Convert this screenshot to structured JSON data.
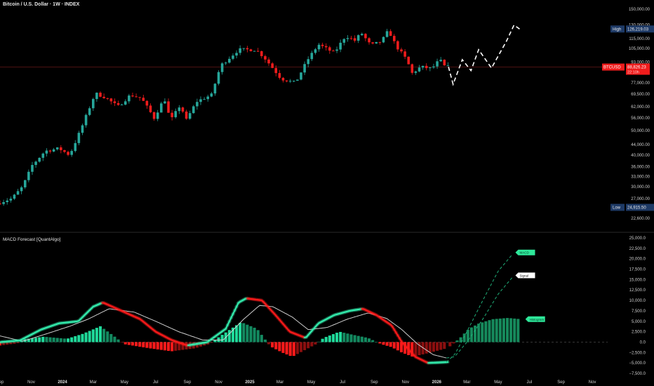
{
  "header": {
    "title": "Bitcoin / U.S. Dollar · 1W · INDEX"
  },
  "indicator": {
    "title": "MACD Forecast [QuantAlgo]"
  },
  "colors": {
    "background": "#000000",
    "up": "#26a69a",
    "down": "#ef1c1c",
    "axis_text": "#cfcfcf",
    "price_line": "#7a1d1d",
    "macd_up": "#35f0b0",
    "macd_down": "#ff1a1a",
    "signal": "#cfcfcf",
    "hist_up": "#1fd99a",
    "hist_up_dark": "#138a60",
    "hist_down": "#ff1a1a",
    "hist_down_dark": "#8b0f0f",
    "forecast_hist": "#168a5c",
    "high_badge": "#1e3a66",
    "low_badge": "#1e3a66"
  },
  "labels": {
    "high_label": "High",
    "high_value": "126,219.03",
    "low_label": "Low",
    "low_value": "24,915.50",
    "symbol": "BTCUSD",
    "last_price": "88,826.23",
    "countdown": "22:10h",
    "macd_tag": "MACD",
    "signal_tag": "Signal",
    "histogram_tag": "Histogram"
  },
  "chart_data": [
    {
      "type": "candlestick",
      "title": "Bitcoin / U.S. Dollar · 1W · INDEX",
      "scale": "log",
      "y_ticks": [
        "150,000.00",
        "130,000.00",
        "115,000.00",
        "105,000.00",
        "93,000.00",
        "77,000.00",
        "69,500.00",
        "62,000.00",
        "56,000.00",
        "50,000.00",
        "44,000.00",
        "40,000.00",
        "36,000.00",
        "33,000.00",
        "30,000.00",
        "27,000.00",
        "22,600.00"
      ],
      "y_tick_values": [
        150000,
        130000,
        115000,
        105000,
        93000,
        77000,
        69500,
        62000,
        56000,
        50000,
        44000,
        40000,
        36000,
        33000,
        30000,
        27000,
        22600
      ],
      "x_ticks": [
        "Sep",
        "Nov",
        "2024",
        "Mar",
        "May",
        "Jul",
        "Sep",
        "Nov",
        "2025",
        "Mar",
        "May",
        "Jul",
        "Sep",
        "Nov",
        "2026",
        "Mar",
        "May",
        "Jul",
        "Sep",
        "Nov"
      ],
      "x_start": "2023-09-01",
      "x_end": "2026-12-01",
      "ylim": [
        20000,
        155000
      ],
      "last_price": 88826.23,
      "high": 126219.03,
      "low": 24915.5,
      "anchors": [
        [
          "2023-09-01",
          25800
        ],
        [
          "2023-10-01",
          27000
        ],
        [
          "2023-10-22",
          30000
        ],
        [
          "2023-11-10",
          36500
        ],
        [
          "2023-12-05",
          41500
        ],
        [
          "2024-01-01",
          42500
        ],
        [
          "2024-01-22",
          40000
        ],
        [
          "2024-02-12",
          50000
        ],
        [
          "2024-03-12",
          70000
        ],
        [
          "2024-04-01",
          67500
        ],
        [
          "2024-04-25",
          62000
        ],
        [
          "2024-05-20",
          69000
        ],
        [
          "2024-06-10",
          67000
        ],
        [
          "2024-07-05",
          56000
        ],
        [
          "2024-07-25",
          67000
        ],
        [
          "2024-08-06",
          54500
        ],
        [
          "2024-08-25",
          63000
        ],
        [
          "2024-09-06",
          55000
        ],
        [
          "2024-09-26",
          65000
        ],
        [
          "2024-10-25",
          69000
        ],
        [
          "2024-11-12",
          90000
        ],
        [
          "2024-12-17",
          104000
        ],
        [
          "2025-01-20",
          104000
        ],
        [
          "2025-02-05",
          97000
        ],
        [
          "2025-03-10",
          80000
        ],
        [
          "2025-04-07",
          77000
        ],
        [
          "2025-05-01",
          95000
        ],
        [
          "2025-05-22",
          109000
        ],
        [
          "2025-06-22",
          101000
        ],
        [
          "2025-07-14",
          118000
        ],
        [
          "2025-08-01",
          113000
        ],
        [
          "2025-08-14",
          121000
        ],
        [
          "2025-09-01",
          108000
        ],
        [
          "2025-09-22",
          112000
        ],
        [
          "2025-10-06",
          124000
        ],
        [
          "2025-10-20",
          108000
        ],
        [
          "2025-11-10",
          95000
        ],
        [
          "2025-11-21",
          84000
        ],
        [
          "2025-12-08",
          89000
        ],
        [
          "2025-12-29",
          87500
        ],
        [
          "2026-01-14",
          95000
        ],
        [
          "2026-01-24",
          89000
        ]
      ],
      "forecast": [
        [
          "2026-01-24",
          89000
        ],
        [
          "2026-02-02",
          76000
        ],
        [
          "2026-02-20",
          95000
        ],
        [
          "2026-03-09",
          86000
        ],
        [
          "2026-03-24",
          104000
        ],
        [
          "2026-04-18",
          88000
        ],
        [
          "2026-05-17",
          112000
        ],
        [
          "2026-06-01",
          130000
        ],
        [
          "2026-06-13",
          125000
        ]
      ]
    },
    {
      "type": "line+bar",
      "title": "MACD Forecast [QuantAlgo]",
      "y_ticks": [
        "25,000.0",
        "22,500.0",
        "20,000.0",
        "17,500.0",
        "15,000.0",
        "12,500.0",
        "10,000.0",
        "7,500.0",
        "5,000.0",
        "2,500.0",
        "0.0",
        "−2,500.0",
        "−5,000.0",
        "−7,500.0"
      ],
      "y_tick_values": [
        25000,
        22500,
        20000,
        17500,
        15000,
        12500,
        10000,
        7500,
        5000,
        2500,
        0,
        -2500,
        -5000,
        -7500
      ],
      "ylim": [
        -8000,
        26000
      ],
      "series": [
        {
          "name": "MACD",
          "points": [
            [
              "2023-09-01",
              0
            ],
            [
              "2023-10-10",
              400
            ],
            [
              "2023-11-20",
              3000
            ],
            [
              "2023-12-25",
              4500
            ],
            [
              "2024-02-01",
              5000
            ],
            [
              "2024-03-01",
              8500
            ],
            [
              "2024-03-20",
              9500
            ],
            [
              "2024-04-20",
              7800
            ],
            [
              "2024-06-01",
              5500
            ],
            [
              "2024-07-01",
              2500
            ],
            [
              "2024-08-01",
              500
            ],
            [
              "2024-09-01",
              -800
            ],
            [
              "2024-10-10",
              0
            ],
            [
              "2024-11-15",
              3200
            ],
            [
              "2024-12-10",
              9500
            ],
            [
              "2024-12-25",
              10500
            ],
            [
              "2025-01-25",
              10000
            ],
            [
              "2025-02-20",
              6500
            ],
            [
              "2025-03-20",
              2500
            ],
            [
              "2025-04-20",
              1000
            ],
            [
              "2025-05-15",
              4500
            ],
            [
              "2025-06-15",
              6500
            ],
            [
              "2025-07-15",
              7500
            ],
            [
              "2025-08-10",
              8000
            ],
            [
              "2025-09-05",
              6500
            ],
            [
              "2025-10-05",
              4000
            ],
            [
              "2025-10-25",
              0
            ],
            [
              "2025-11-20",
              -3500
            ],
            [
              "2025-12-15",
              -5000
            ],
            [
              "2026-01-20",
              -4800
            ]
          ]
        },
        {
          "name": "Signal",
          "points": [
            [
              "2023-09-01",
              1500
            ],
            [
              "2023-10-15",
              200
            ],
            [
              "2023-12-01",
              2000
            ],
            [
              "2024-01-15",
              3800
            ],
            [
              "2024-02-20",
              5500
            ],
            [
              "2024-04-01",
              8000
            ],
            [
              "2024-05-20",
              7200
            ],
            [
              "2024-07-01",
              5000
            ],
            [
              "2024-08-15",
              2500
            ],
            [
              "2024-10-01",
              500
            ],
            [
              "2024-11-10",
              500
            ],
            [
              "2024-12-20",
              5500
            ],
            [
              "2025-01-20",
              8800
            ],
            [
              "2025-02-15",
              8500
            ],
            [
              "2025-03-25",
              6000
            ],
            [
              "2025-04-25",
              3000
            ],
            [
              "2025-06-01",
              3500
            ],
            [
              "2025-07-10",
              5500
            ],
            [
              "2025-08-20",
              7000
            ],
            [
              "2025-09-25",
              5700
            ],
            [
              "2025-10-25",
              3000
            ],
            [
              "2025-11-25",
              -500
            ],
            [
              "2025-12-25",
              -3000
            ],
            [
              "2026-01-20",
              -3800
            ]
          ]
        },
        {
          "name": "MACD forecast",
          "points": [
            [
              "2026-01-20",
              -4800
            ],
            [
              "2026-02-05",
              -3000
            ],
            [
              "2026-03-01",
              2500
            ],
            [
              "2026-04-01",
              10000
            ],
            [
              "2026-05-01",
              17000
            ],
            [
              "2026-06-01",
              21500
            ]
          ]
        },
        {
          "name": "Signal forecast",
          "points": [
            [
              "2026-01-20",
              -3800
            ],
            [
              "2026-02-05",
              -3500
            ],
            [
              "2026-03-01",
              0
            ],
            [
              "2026-04-01",
              5500
            ],
            [
              "2026-05-01",
              11500
            ],
            [
              "2026-06-01",
              16000
            ]
          ]
        },
        {
          "name": "Histogram",
          "points": [
            [
              "2023-09-01",
              -800
            ],
            [
              "2023-10-05",
              -300
            ],
            [
              "2023-10-20",
              700
            ],
            [
              "2023-11-25",
              1300
            ],
            [
              "2024-01-10",
              800
            ],
            [
              "2024-02-10",
              2000
            ],
            [
              "2024-03-15",
              3800
            ],
            [
              "2024-04-10",
              1500
            ],
            [
              "2024-05-01",
              -500
            ],
            [
              "2024-06-20",
              -1500
            ],
            [
              "2024-08-01",
              -2200
            ],
            [
              "2024-09-15",
              -1500
            ],
            [
              "2024-10-15",
              -400
            ],
            [
              "2024-11-05",
              1500
            ],
            [
              "2024-12-15",
              4800
            ],
            [
              "2025-01-15",
              3200
            ],
            [
              "2025-02-10",
              -1000
            ],
            [
              "2025-03-05",
              -2500
            ],
            [
              "2025-03-25",
              -3500
            ],
            [
              "2025-04-20",
              -1800
            ],
            [
              "2025-05-10",
              -500
            ],
            [
              "2025-05-25",
              1000
            ],
            [
              "2025-06-25",
              2500
            ],
            [
              "2025-07-20",
              1800
            ],
            [
              "2025-08-20",
              1000
            ],
            [
              "2025-09-15",
              -500
            ],
            [
              "2025-10-05",
              -1200
            ],
            [
              "2025-10-25",
              -2500
            ],
            [
              "2025-11-15",
              -3500
            ],
            [
              "2025-12-10",
              -2800
            ],
            [
              "2026-01-20",
              -1500
            ]
          ]
        },
        {
          "name": "Histogram forecast",
          "points": [
            [
              "2026-01-27",
              -1000
            ],
            [
              "2026-02-15",
              900
            ],
            [
              "2026-03-05",
              3200
            ],
            [
              "2026-03-25",
              4500
            ],
            [
              "2026-04-20",
              5500
            ],
            [
              "2026-05-20",
              5800
            ],
            [
              "2026-06-15",
              5500
            ]
          ]
        }
      ]
    }
  ]
}
